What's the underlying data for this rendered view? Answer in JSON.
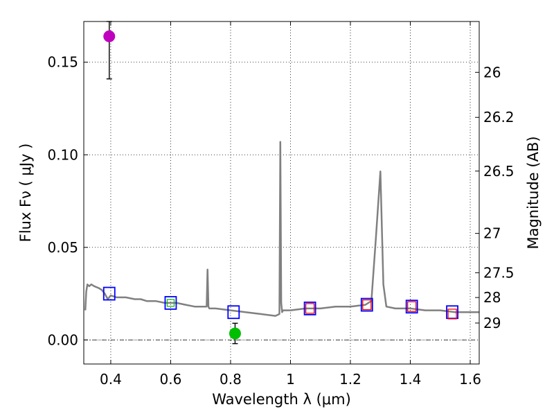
{
  "chart_data": {
    "type": "scatter",
    "xlabel": "Wavelength  λ (μm)",
    "ylabel": "Flux  Fν  ( μJy )",
    "y2label": "Magnitude (AB)",
    "xlim": [
      0.31,
      1.63
    ],
    "ylim": [
      -0.013,
      0.172
    ],
    "xticks": [
      0.4,
      0.6,
      0.8,
      1.0,
      1.2,
      1.4,
      1.6
    ],
    "xtick_labels": [
      "0.4",
      "0.6",
      "0.8",
      "1",
      "1.2",
      "1.4",
      "1.6"
    ],
    "yticks": [
      0.0,
      0.05,
      0.1,
      0.15
    ],
    "ytick_labels": [
      "0.00",
      "0.05",
      "0.10",
      "0.15"
    ],
    "mag_ticks": [
      26,
      26.2,
      26.5,
      27,
      27.5,
      28,
      29
    ],
    "mag_tick_labels": [
      "26",
      "26.2",
      "26.5",
      "27",
      "27.5",
      "28",
      "29"
    ],
    "grid": true,
    "colors": {
      "spectrum": "#808080",
      "model_box": "#0000ff",
      "observed_box": "#ff0000",
      "magenta_point": "#bf00bf",
      "green_point": "#00bf00",
      "green_box": "#00bf00"
    },
    "series": [
      {
        "name": "model spectrum",
        "kind": "line",
        "x": [
          0.315,
          0.318,
          0.322,
          0.328,
          0.335,
          0.345,
          0.36,
          0.37,
          0.38,
          0.39,
          0.4,
          0.42,
          0.45,
          0.48,
          0.5,
          0.52,
          0.55,
          0.58,
          0.6,
          0.62,
          0.65,
          0.68,
          0.7,
          0.72,
          0.723,
          0.726,
          0.729,
          0.732,
          0.75,
          0.8,
          0.85,
          0.9,
          0.95,
          0.963,
          0.966,
          0.969,
          0.972,
          0.975,
          1.0,
          1.05,
          1.1,
          1.15,
          1.2,
          1.25,
          1.27,
          1.285,
          1.3,
          1.31,
          1.32,
          1.35,
          1.4,
          1.45,
          1.5,
          1.55,
          1.6,
          1.63
        ],
        "y": [
          0.016,
          0.026,
          0.03,
          0.029,
          0.03,
          0.029,
          0.028,
          0.027,
          0.025,
          0.022,
          0.024,
          0.023,
          0.023,
          0.022,
          0.022,
          0.021,
          0.021,
          0.02,
          0.02,
          0.02,
          0.019,
          0.018,
          0.018,
          0.018,
          0.038,
          0.018,
          0.017,
          0.017,
          0.017,
          0.016,
          0.015,
          0.014,
          0.013,
          0.014,
          0.107,
          0.02,
          0.015,
          0.016,
          0.016,
          0.017,
          0.017,
          0.018,
          0.018,
          0.019,
          0.021,
          0.055,
          0.091,
          0.03,
          0.018,
          0.017,
          0.017,
          0.016,
          0.016,
          0.015,
          0.015,
          0.015
        ]
      },
      {
        "name": "model photometry",
        "kind": "open-square",
        "x": [
          0.395,
          0.6,
          0.81,
          1.065,
          1.255,
          1.405,
          1.54
        ],
        "y": [
          0.025,
          0.02,
          0.015,
          0.017,
          0.019,
          0.018,
          0.015
        ]
      },
      {
        "name": "observed photometry",
        "kind": "open-square-small",
        "x": [
          1.065,
          1.255,
          1.405,
          1.54
        ],
        "y": [
          0.017,
          0.019,
          0.018,
          0.014
        ]
      },
      {
        "name": "detection (magenta)",
        "kind": "point-errorbar",
        "x": [
          0.395
        ],
        "y": [
          0.164
        ],
        "yerr_low": [
          0.023
        ],
        "yerr_high": [
          0.01
        ]
      },
      {
        "name": "detection (green)",
        "kind": "point-errorbar",
        "x": [
          0.815
        ],
        "y": [
          0.0035
        ],
        "yerr_low": [
          0.0055
        ],
        "yerr_high": [
          0.0055
        ]
      }
    ]
  }
}
